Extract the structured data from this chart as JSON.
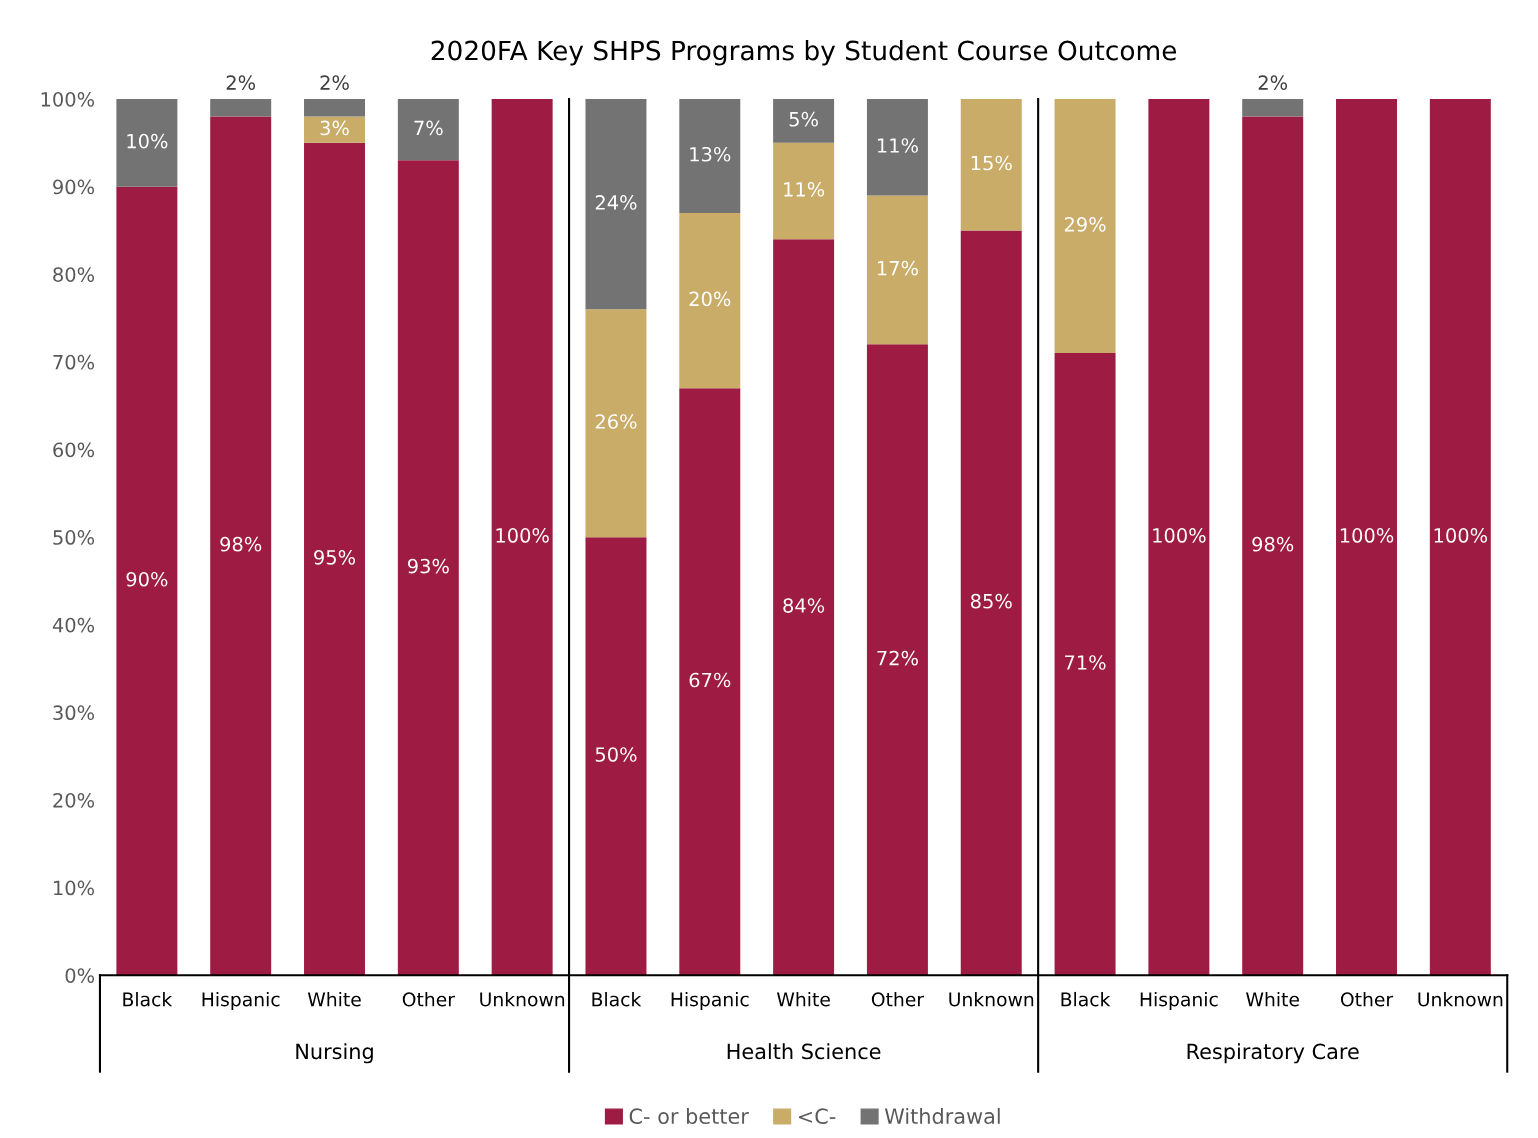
{
  "chart_data": {
    "type": "bar",
    "title": "2020FA Key SHPS Programs by Student Course Outcome",
    "categories": [
      "Black",
      "Hispanic",
      "White",
      "Other",
      "Unknown",
      "Black",
      "Hispanic",
      "White",
      "Other",
      "Unknown",
      "Black",
      "Hispanic",
      "White",
      "Other",
      "Unknown"
    ],
    "stacked": true,
    "series": [
      {
        "name": "C- or better",
        "color": "#9e1c43",
        "values": [
          90,
          98,
          95,
          93,
          100,
          50,
          67,
          84,
          72,
          85,
          71,
          100,
          98,
          100,
          100
        ],
        "value_labels": [
          "90%",
          "98%",
          "95%",
          "93%",
          "100%",
          "50%",
          "67%",
          "84%",
          "72%",
          "85%",
          "71%",
          "100%",
          "98%",
          "100%",
          "100%"
        ]
      },
      {
        "name": "<C-",
        "color": "#c9ac68",
        "values": [
          null,
          null,
          3,
          null,
          null,
          26,
          20,
          11,
          17,
          15,
          29,
          null,
          null,
          null,
          null
        ],
        "value_labels": [
          null,
          null,
          "3%",
          null,
          null,
          "26%",
          "20%",
          "11%",
          "17%",
          "15%",
          "29%",
          null,
          null,
          null,
          null
        ]
      },
      {
        "name": "Withdrawal",
        "color": "#737373",
        "values": [
          10,
          2,
          2,
          7,
          null,
          24,
          13,
          5,
          11,
          null,
          null,
          null,
          2,
          null,
          null
        ],
        "value_labels": [
          "10%",
          "2%",
          "2%",
          "7%",
          null,
          "24%",
          "13%",
          "5%",
          "11%",
          null,
          null,
          null,
          "2%",
          null,
          null
        ]
      }
    ],
    "ylim": [
      0,
      100
    ],
    "yticks": [
      {
        "value": 0,
        "label": "0%"
      },
      {
        "value": 10,
        "label": "10%"
      },
      {
        "value": 20,
        "label": "20%"
      },
      {
        "value": 30,
        "label": "30%"
      },
      {
        "value": 40,
        "label": "40%"
      },
      {
        "value": 50,
        "label": "50%"
      },
      {
        "value": 60,
        "label": "60%"
      },
      {
        "value": 70,
        "label": "70%"
      },
      {
        "value": 80,
        "label": "80%"
      },
      {
        "value": 90,
        "label": "90%"
      },
      {
        "value": 100,
        "label": "100%"
      }
    ],
    "annotations": [
      "Nursing",
      "Health Science",
      "Respiratory Care"
    ],
    "grid": false,
    "legend": "bottom"
  }
}
